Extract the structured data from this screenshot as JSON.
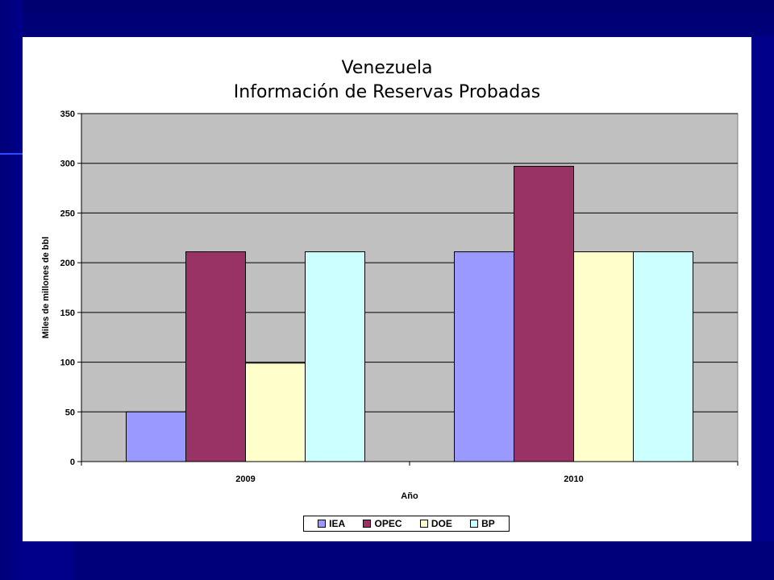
{
  "colors": {
    "background": "#00008b",
    "plot_area": "#c0c0c0",
    "IEA": "#9999ff",
    "OPEC": "#993366",
    "DOE": "#ffffcc",
    "BP": "#ccffff"
  },
  "chart_data": {
    "type": "bar",
    "title": "Venezuela",
    "subtitle": "Información de Reservas Probadas",
    "xlabel": "Año",
    "ylabel": "Miles de millones de bbl",
    "categories": [
      "2009",
      "2010"
    ],
    "series": [
      {
        "name": "IEA",
        "values": [
          50,
          211
        ]
      },
      {
        "name": "OPEC",
        "values": [
          211,
          297
        ]
      },
      {
        "name": "DOE",
        "values": [
          99,
          211
        ]
      },
      {
        "name": "BP",
        "values": [
          211,
          211
        ]
      }
    ],
    "ylim": [
      0,
      350
    ],
    "yticks": [
      "0",
      "50",
      "100",
      "150",
      "200",
      "250",
      "300",
      "350"
    ],
    "grid": true,
    "legend": "bottom"
  }
}
